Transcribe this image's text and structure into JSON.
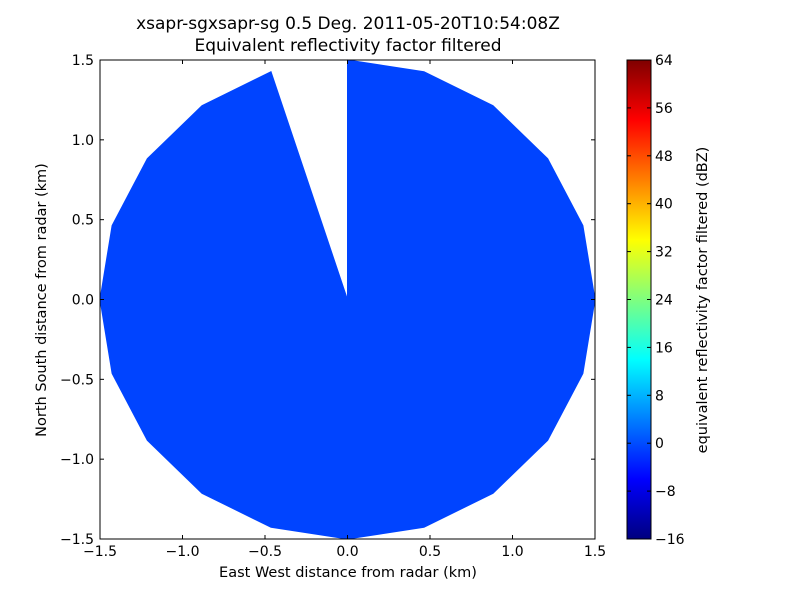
{
  "chart_data": {
    "type": "heatmap",
    "title": "xsapr-sgxsapr-sg 0.5 Deg. 2011-05-20T10:54:08Z",
    "subtitle": "Equivalent reflectivity factor filtered",
    "xlabel": "East West distance from radar (km)",
    "ylabel": "North South distance from radar (km)",
    "xlim": [
      -1.5,
      1.5
    ],
    "ylim": [
      -1.5,
      1.5
    ],
    "x_ticks": [
      "−1.5",
      "−1.0",
      "−0.5",
      "0.0",
      "0.5",
      "1.0",
      "1.5"
    ],
    "y_ticks": [
      "−1.5",
      "−1.0",
      "−0.5",
      "0.0",
      "0.5",
      "1.0",
      "1.5"
    ],
    "x_tick_values": [
      -1.5,
      -1.0,
      -0.5,
      0.0,
      0.5,
      1.0,
      1.5
    ],
    "y_tick_values": [
      -1.5,
      -1.0,
      -0.5,
      0.0,
      0.5,
      1.0,
      1.5
    ],
    "grid": false,
    "sweep": {
      "range_km": 1.5,
      "azimuth_start_deg": 0,
      "azimuth_end_deg": 342,
      "azimuth_step_deg": 18,
      "value_dbz": 0,
      "fill_color": "#0044ff"
    },
    "colorbar": {
      "label": "equivalent reflectivity factor filtered (dBZ)",
      "vmin": -16,
      "vmax": 64,
      "ticks": [
        "64",
        "56",
        "48",
        "40",
        "32",
        "24",
        "16",
        "8",
        "0",
        "−8",
        "−16"
      ],
      "tick_values": [
        64,
        56,
        48,
        40,
        32,
        24,
        16,
        8,
        0,
        -8,
        -16
      ],
      "colormap": "jet",
      "stops": [
        "#00007f",
        "#0000ff",
        "#007fff",
        "#00ffff",
        "#7fff7f",
        "#ffff00",
        "#ff7f00",
        "#ff0000",
        "#7f0000"
      ]
    }
  }
}
